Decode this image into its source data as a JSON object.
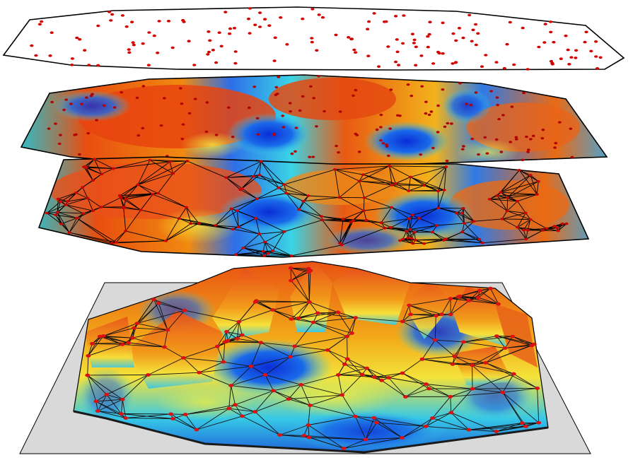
{
  "layers": [
    {
      "id": "sample-points",
      "kind": "scatter-plane",
      "point_color": "#d40000",
      "fill": "#ffffff"
    },
    {
      "id": "interpolated-surface",
      "kind": "heat-plane",
      "colormap": "jet",
      "point_color": "#d40000"
    },
    {
      "id": "triangulated-surface",
      "kind": "mesh-plane",
      "colormap": "jet",
      "edge_color": "#000000",
      "point_color": "#d40000"
    },
    {
      "id": "relief-surface",
      "kind": "3d-terrain",
      "colormap": "jet",
      "base_fill": "#d9d9d9",
      "point_color": "#d40000"
    }
  ]
}
